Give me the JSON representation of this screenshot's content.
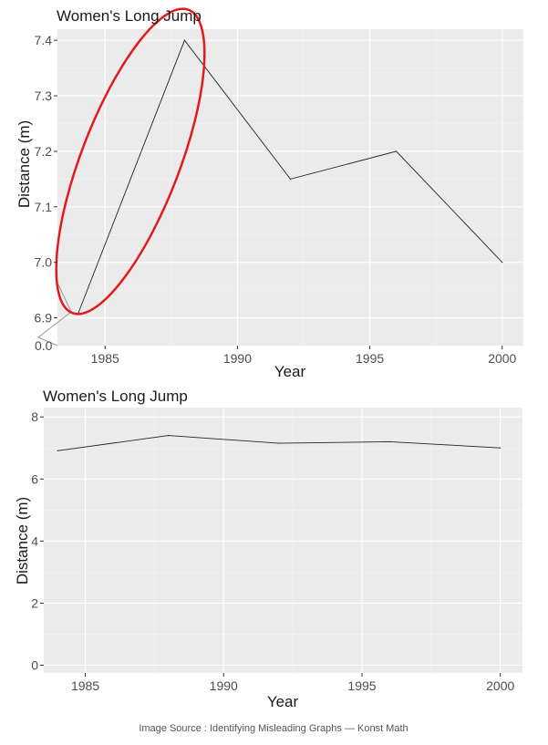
{
  "chart_data": [
    {
      "type": "line",
      "title": "Women's Long Jump",
      "xlabel": "Year",
      "ylabel": "Distance (m)",
      "x": [
        1984,
        1988,
        1992,
        1996,
        2000
      ],
      "values": [
        6.91,
        7.4,
        7.15,
        7.2,
        7.0
      ],
      "xticks": [
        1985,
        1990,
        1995,
        2000
      ],
      "yticks": [
        "7.4",
        "7.3",
        "7.2",
        "7.1",
        "7.0",
        "6.9"
      ],
      "y_zero_label": "0.0",
      "xlim": [
        1983.2,
        2000.8
      ],
      "ylim": [
        6.85,
        7.42
      ],
      "axis_break": true,
      "highlight_color": "#e31a1c",
      "grid": true,
      "panel_color": "#ebebeb"
    },
    {
      "type": "line",
      "title": "Women's Long Jump",
      "xlabel": "Year",
      "ylabel": "Distance (m)",
      "x": [
        1984,
        1988,
        1992,
        1996,
        2000
      ],
      "values": [
        6.91,
        7.4,
        7.15,
        7.2,
        7.0
      ],
      "xticks": [
        1985,
        1990,
        1995,
        2000
      ],
      "yticks": [
        "0",
        "2",
        "4",
        "6",
        "8"
      ],
      "xlim": [
        1983.5,
        2000.8
      ],
      "ylim": [
        -0.25,
        8.3
      ],
      "grid": true,
      "panel_color": "#ebebeb"
    }
  ],
  "caption": "Image Source : Identifying Misleading Graphs — Konst Math"
}
